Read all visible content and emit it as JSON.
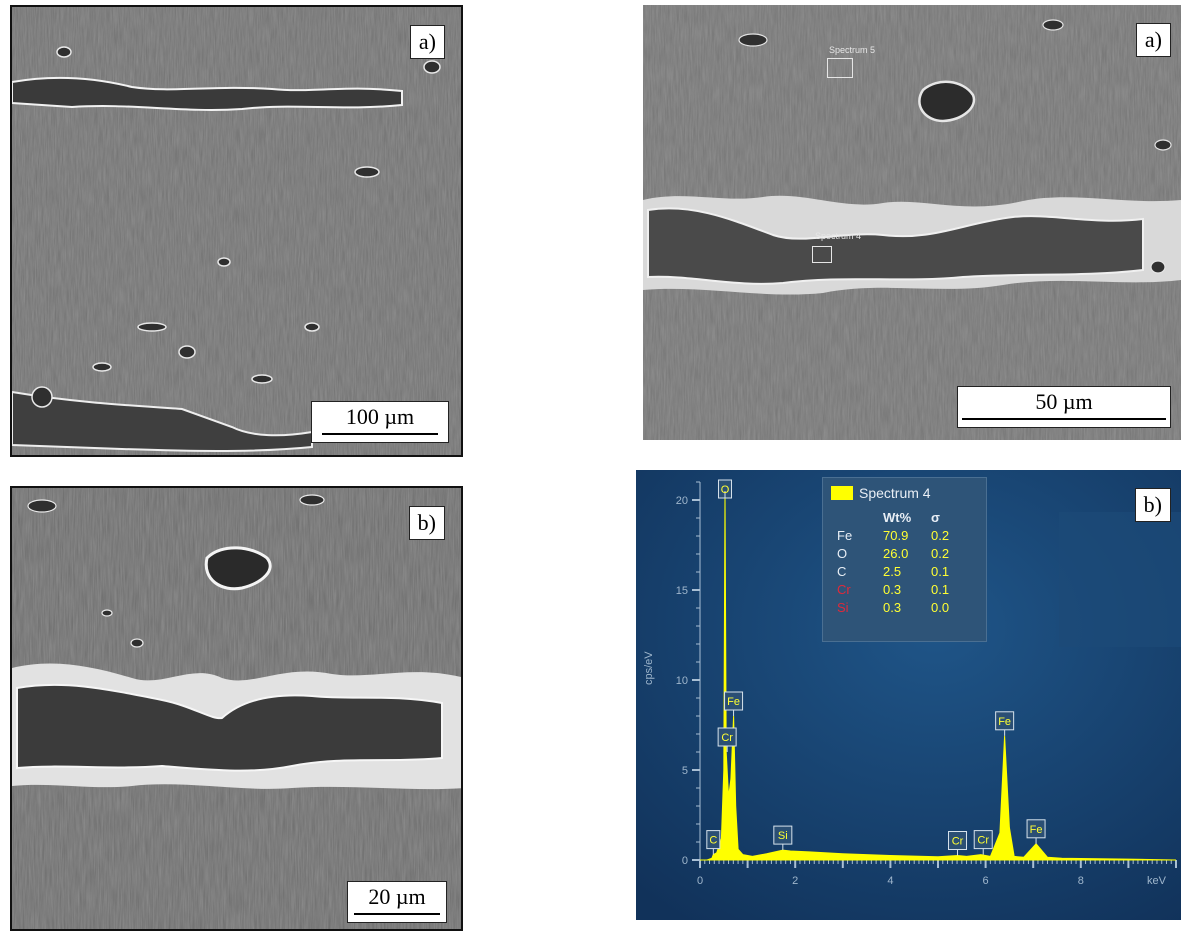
{
  "panels": {
    "top_left": {
      "tag": "a)",
      "scale": "100 µm"
    },
    "bottom_left": {
      "tag": "b)",
      "scale": "20 µm"
    },
    "top_right": {
      "tag": "a)",
      "scale": "50 µm",
      "spectrum_labels": [
        "Spectrum 5",
        "Spectrum 4"
      ]
    },
    "bottom_right": {
      "tag": "b)"
    }
  },
  "eds_legend": {
    "title": "Spectrum 4",
    "col_wt": "Wt%",
    "col_sigma": "σ",
    "rows": [
      {
        "el": "Fe",
        "wt": "70.9",
        "sigma": "0.2",
        "color": "#e8eef5"
      },
      {
        "el": "O",
        "wt": "26.0",
        "sigma": "0.2",
        "color": "#e8eef5"
      },
      {
        "el": "C",
        "wt": "2.5",
        "sigma": "0.1",
        "color": "#e8eef5"
      },
      {
        "el": "Cr",
        "wt": "0.3",
        "sigma": "0.1",
        "color": "#e0293a"
      },
      {
        "el": "Si",
        "wt": "0.3",
        "sigma": "0.0",
        "color": "#e0293a"
      }
    ]
  },
  "chart_data": {
    "type": "area",
    "ylabel": "cps/eV",
    "xunit": "keV",
    "xlim": [
      0,
      10
    ],
    "ylim": [
      0,
      21
    ],
    "x_ticks": [
      "0",
      "2",
      "4",
      "6",
      "8"
    ],
    "y_ticks": [
      "0",
      "5",
      "10",
      "15",
      "20"
    ],
    "series": [
      {
        "color": "#ffff00",
        "x": [
          0.0,
          0.15,
          0.25,
          0.28,
          0.35,
          0.45,
          0.5,
          0.525,
          0.55,
          0.6,
          0.65,
          0.705,
          0.75,
          0.8,
          0.9,
          1.1,
          1.4,
          1.74,
          1.9,
          2.3,
          3.0,
          4.0,
          5.0,
          5.41,
          5.6,
          5.9,
          6.1,
          6.3,
          6.4,
          6.5,
          6.6,
          6.8,
          7.06,
          7.3,
          7.6,
          9.0,
          10.0
        ],
        "y": [
          0.0,
          0.0,
          0.1,
          0.3,
          0.4,
          1.2,
          5.0,
          20.5,
          6.0,
          3.5,
          4.5,
          8.0,
          3.0,
          0.6,
          0.3,
          0.2,
          0.35,
          0.55,
          0.5,
          0.45,
          0.35,
          0.25,
          0.18,
          0.25,
          0.2,
          0.3,
          0.2,
          1.5,
          6.9,
          1.8,
          0.2,
          0.15,
          0.9,
          0.15,
          0.1,
          0.05,
          0.0
        ]
      }
    ],
    "peak_labels": [
      {
        "label": "O",
        "x": 0.525,
        "y": 20.5
      },
      {
        "label": "Fe",
        "x": 0.705,
        "y": 8.0
      },
      {
        "label": "Cr",
        "x": 0.57,
        "y": 6.0
      },
      {
        "label": "C",
        "x": 0.28,
        "y": 0.3
      },
      {
        "label": "Si",
        "x": 1.74,
        "y": 0.55
      },
      {
        "label": "Cr",
        "x": 5.41,
        "y": 0.25
      },
      {
        "label": "Cr",
        "x": 5.95,
        "y": 0.3
      },
      {
        "label": "Fe",
        "x": 6.4,
        "y": 6.9
      },
      {
        "label": "Fe",
        "x": 7.06,
        "y": 0.9
      }
    ]
  }
}
